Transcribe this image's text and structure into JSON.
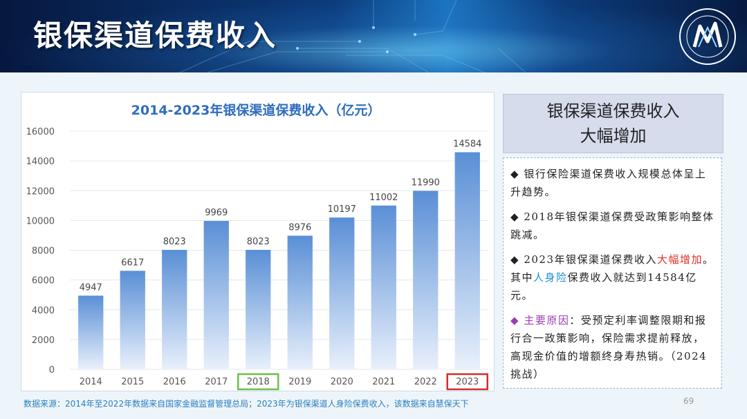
{
  "header": {
    "title": "银保渠道保费收入"
  },
  "chart_data": {
    "type": "bar",
    "title": "2014-2023年银保渠道保费收入（亿元）",
    "categories": [
      "2014",
      "2015",
      "2016",
      "2017",
      "2018",
      "2019",
      "2020",
      "2021",
      "2022",
      "2023"
    ],
    "values": [
      4947,
      6617,
      8023,
      9969,
      8023,
      8976,
      10197,
      11002,
      11990,
      14584
    ],
    "ylim": [
      0,
      16000
    ],
    "yticks": [
      0,
      2000,
      4000,
      6000,
      8000,
      10000,
      12000,
      14000,
      16000
    ],
    "highlights": [
      {
        "category": "2018",
        "color": "#6cbf4a"
      },
      {
        "category": "2023",
        "color": "#d62b2b"
      }
    ],
    "colors": {
      "bar_top": "#5a8fd6",
      "bar_bottom": "#e8f0fb",
      "title": "#2e6cc0"
    }
  },
  "panel": {
    "title_line1": "银保渠道保费收入",
    "title_line2": "大幅增加",
    "bullets": [
      {
        "marker": "◆",
        "text": "银行保险渠道保费收入规模总体呈上升趋势。"
      },
      {
        "marker": "◆",
        "text": "2018年银保渠道保费受政策影响整体跳减。"
      },
      {
        "marker": "◆",
        "seg1": "2023年银保渠道保费收入",
        "red": "大幅增加",
        "seg2": "。其中",
        "blue": "人身险",
        "seg3": "保费收入就达到14584亿元。"
      },
      {
        "marker": "◆",
        "purple": "主要原因",
        "text": "：受预定利率调整限期和报行合一政策影响，保险需求提前释放，高现金价值的增额终身寿热销。（2024挑战）"
      }
    ]
  },
  "footer": {
    "source": "数据来源：2014年至2022年数据来自国家金融监督管理总局；2023年为银保渠道人身险保费收入，该数据来自慧保天下",
    "page_number": "69"
  }
}
